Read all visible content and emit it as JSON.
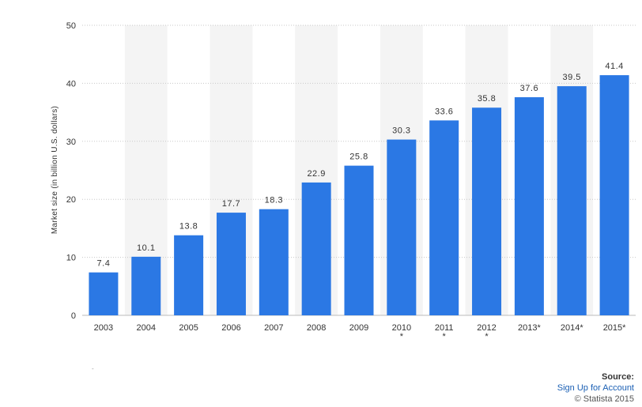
{
  "chart_data": {
    "type": "bar",
    "title": "",
    "xlabel": "",
    "ylabel": "Market size (in billion U.S. dollars)",
    "ylim": [
      0,
      50
    ],
    "yticks": [
      0,
      10,
      20,
      30,
      40,
      50
    ],
    "grid": true,
    "categories": [
      [
        "2003"
      ],
      [
        "2004"
      ],
      [
        "2005"
      ],
      [
        "2006"
      ],
      [
        "2007"
      ],
      [
        "2008"
      ],
      [
        "2009"
      ],
      [
        "2010",
        "*"
      ],
      [
        "2011",
        "*"
      ],
      [
        "2012",
        "*"
      ],
      [
        "2013*"
      ],
      [
        "2014*"
      ],
      [
        "2015*"
      ]
    ],
    "values": [
      7.4,
      10.1,
      13.8,
      17.7,
      18.3,
      22.9,
      25.8,
      30.3,
      33.6,
      35.8,
      37.6,
      39.5,
      41.4
    ],
    "value_labels": [
      "7.4",
      "10.1",
      "13.8",
      "17.7",
      "18.3",
      "22.9",
      "25.8",
      "30.3",
      "33.6",
      "35.8",
      "37.6",
      "39.5",
      "41.4"
    ],
    "bar_color": "#2b78e4",
    "band_color": "#f4f4f4"
  },
  "source": {
    "title": "Source:",
    "link": "Sign Up for Account",
    "copyright": "© Statista 2015"
  },
  "corner_mark": "-"
}
